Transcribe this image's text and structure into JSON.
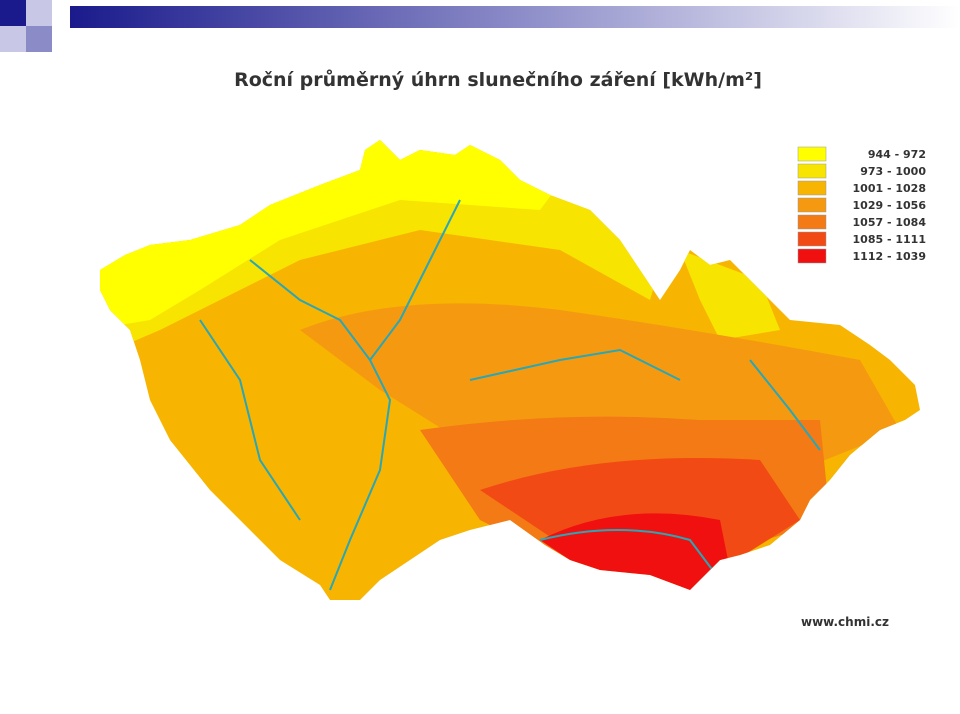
{
  "title": "Roční průměrný úhrn slunečního záření [kWh/m²]",
  "legend": [
    {
      "label": "944 - 972",
      "color": "#ffff00"
    },
    {
      "label": "973 - 1000",
      "color": "#f7e400"
    },
    {
      "label": "1001 - 1028",
      "color": "#f7b400"
    },
    {
      "label": "1029 - 1056",
      "color": "#f59a10"
    },
    {
      "label": "1057 - 1084",
      "color": "#f37a14"
    },
    {
      "label": "1085 - 1111",
      "color": "#f24a14"
    },
    {
      "label": "1112 - 1039",
      "color": "#f01010"
    }
  ],
  "source": "www.chmi.cz"
}
